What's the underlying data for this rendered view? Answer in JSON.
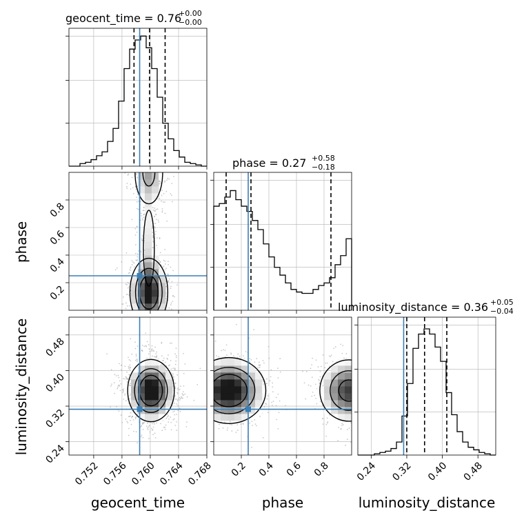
{
  "chart_data": {
    "type": "corner",
    "parameters": [
      "geocent_time",
      "phase",
      "luminosity_distance"
    ],
    "truths": {
      "geocent_time": 0.7585,
      "phase": 0.25,
      "luminosity_distance": 0.313
    },
    "colors": {
      "truth": "#3b7fb6",
      "hist": "#000000",
      "grid": "#b0b0b0",
      "scatter": "#9a9a9a"
    },
    "grid": true,
    "titles": {
      "geocent_time": {
        "prefix": "geocent_time = 0.76",
        "sup": "+0.00",
        "sub": "−0.00"
      },
      "phase": {
        "prefix": "phase = 0.27",
        "sup": "+0.58",
        "sub": "−0.18"
      },
      "luminosity_distance": {
        "prefix": "luminosity_distance = 0.36",
        "sup": "+0.05",
        "sub": "−0.04"
      }
    },
    "axes": {
      "geocent_time": {
        "range": [
          0.7485,
          0.768
        ],
        "ticks": [
          0.752,
          0.756,
          0.76,
          0.764,
          0.768
        ],
        "tick_labels": [
          "0.752",
          "0.756",
          "0.760",
          "0.764",
          "0.768"
        ]
      },
      "phase": {
        "range": [
          0.0,
          1.0
        ],
        "ticks_x": [
          0.2,
          0.4,
          0.6,
          0.8
        ],
        "ticks_y": [
          0.2,
          0.4,
          0.6,
          0.8
        ],
        "tick_labels": [
          "0.2",
          "0.4",
          "0.6",
          "0.8"
        ]
      },
      "luminosity_distance": {
        "range": [
          0.21,
          0.52
        ],
        "ticks": [
          0.24,
          0.32,
          0.4,
          0.48
        ],
        "tick_labels": [
          "0.24",
          "0.32",
          "0.40",
          "0.48"
        ]
      }
    },
    "quantiles": {
      "geocent_time": [
        0.7577,
        0.7599,
        0.7621
      ],
      "phase": [
        0.09,
        0.27,
        0.85
      ],
      "luminosity_distance": [
        0.32,
        0.36,
        0.41
      ]
    },
    "histograms": {
      "geocent_time": [
        0.0,
        0.0,
        0.02,
        0.03,
        0.05,
        0.08,
        0.11,
        0.19,
        0.29,
        0.5,
        0.75,
        0.9,
        0.97,
        1.0,
        0.91,
        0.75,
        0.53,
        0.33,
        0.21,
        0.12,
        0.07,
        0.03,
        0.02,
        0.01,
        0.0
      ],
      "phase": [
        0.8,
        0.82,
        0.87,
        0.92,
        0.85,
        0.8,
        0.76,
        0.69,
        0.62,
        0.51,
        0.41,
        0.33,
        0.27,
        0.21,
        0.16,
        0.14,
        0.13,
        0.13,
        0.16,
        0.19,
        0.21,
        0.25,
        0.35,
        0.42,
        0.55
      ],
      "luminosity_distance": [
        0.0,
        0.0,
        0.0,
        0.01,
        0.02,
        0.03,
        0.05,
        0.1,
        0.3,
        0.55,
        0.82,
        0.93,
        0.97,
        0.93,
        0.83,
        0.72,
        0.48,
        0.31,
        0.18,
        0.1,
        0.06,
        0.04,
        0.02,
        0.01,
        0.0
      ]
    },
    "joint": {
      "phase_vs_geocent_time": {
        "blobs": [
          {
            "x": 0.7598,
            "y": 0.13,
            "sx": 0.0013,
            "sy": 0.12,
            "w": 1.0
          },
          {
            "x": 0.7598,
            "y": 1.0,
            "sx": 0.0012,
            "sy": 0.14,
            "w": 0.45
          },
          {
            "x": 0.7598,
            "y": 0.45,
            "sx": 0.0007,
            "sy": 0.25,
            "w": 0.22
          }
        ]
      },
      "luminosity_distance_vs_geocent_time": {
        "blobs": [
          {
            "x": 0.7601,
            "y": 0.355,
            "sx": 0.0016,
            "sy": 0.034,
            "w": 1.0
          }
        ]
      },
      "luminosity_distance_vs_phase": {
        "blobs": [
          {
            "x": 0.11,
            "y": 0.355,
            "sx": 0.13,
            "sy": 0.036,
            "w": 1.0
          },
          {
            "x": 0.98,
            "y": 0.355,
            "sx": 0.11,
            "sy": 0.036,
            "w": 0.75
          }
        ]
      }
    },
    "axis_labels": {
      "geocent_time": "geocent_time",
      "phase": "phase",
      "luminosity_distance": "luminosity_distance"
    }
  }
}
